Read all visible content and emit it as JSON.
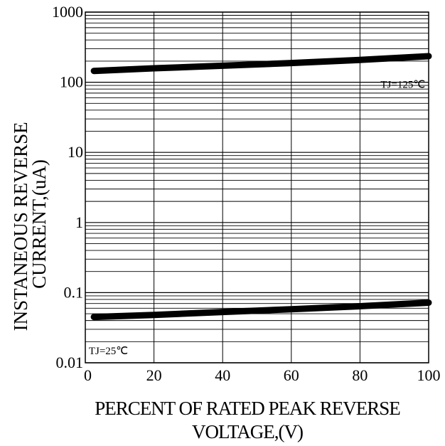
{
  "chart_data": {
    "type": "line",
    "xlabel_lines": [
      "PERCENT OF RATED PEAK REVERSE",
      "VOLTAGE,(V)"
    ],
    "ylabel_lines": [
      "INSTANEOUS REVERSE",
      "CURRENT,(uA)"
    ],
    "xlim": [
      0,
      100
    ],
    "ylim": [
      0.01,
      1000
    ],
    "yscale": "log",
    "grid": true,
    "x_ticks": [
      0,
      20,
      40,
      60,
      80,
      100
    ],
    "x_tick_labels": [
      "0",
      "20",
      "40",
      "60",
      "80",
      "100"
    ],
    "y_ticks": [
      0.01,
      0.1,
      1,
      10,
      100,
      1000
    ],
    "y_tick_labels": [
      "0.01",
      "0.1",
      "1",
      "10",
      "100",
      "1000"
    ],
    "series": [
      {
        "name": "TJ=125℃",
        "x": [
          2.5,
          20,
          40,
          60,
          80,
          100
        ],
        "y": [
          145,
          158,
          172,
          188,
          208,
          235
        ]
      },
      {
        "name": "TJ=25℃",
        "x": [
          2.5,
          20,
          40,
          60,
          80,
          100
        ],
        "y": [
          0.045,
          0.048,
          0.053,
          0.058,
          0.064,
          0.072
        ]
      }
    ],
    "annotations": [
      {
        "text": "TJ=125℃",
        "x": 86,
        "y": 100
      },
      {
        "text": "TJ=25℃",
        "x": 1,
        "y": 0.016
      }
    ]
  }
}
